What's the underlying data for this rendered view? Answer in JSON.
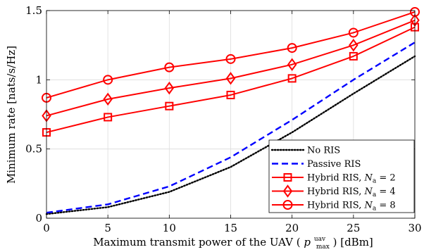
{
  "chart_data": {
    "type": "line",
    "xlabel": "Maximum transmit power of the UAV (p_max^uav) [dBm]",
    "xlabel_parts": {
      "prefix": "Maximum transmit power of the UAV (",
      "symbol": "p",
      "superscript": "uav",
      "subscript": "max",
      "suffix": ") [dBm]"
    },
    "ylabel": "Minimum rate [nats/s/Hz]",
    "xlim": [
      0,
      30
    ],
    "ylim": [
      0,
      1.5
    ],
    "x_ticks": [
      0,
      5,
      10,
      15,
      20,
      25,
      30
    ],
    "y_ticks": [
      0,
      0.5,
      1,
      1.5
    ],
    "x_tick_labels": [
      "0",
      "5",
      "10",
      "15",
      "20",
      "25",
      "30"
    ],
    "y_tick_labels": [
      "0",
      "0.5",
      "1",
      "1.5"
    ],
    "grid": true,
    "legend_position": "bottom-right",
    "x": [
      0,
      5,
      10,
      15,
      20,
      25,
      30
    ],
    "series": [
      {
        "name": "No RIS",
        "legend_text": "No RIS",
        "color": "#000000",
        "style": "dotted",
        "marker": "none",
        "values": [
          0.03,
          0.08,
          0.19,
          0.37,
          0.62,
          0.9,
          1.17
        ]
      },
      {
        "name": "Passive RIS",
        "legend_text": "Passive RIS",
        "color": "#0000ff",
        "style": "dashed",
        "marker": "none",
        "values": [
          0.04,
          0.1,
          0.23,
          0.44,
          0.71,
          1.0,
          1.27
        ]
      },
      {
        "name": "Hybrid RIS, N_a = 2",
        "legend_text": "Hybrid RIS, ",
        "math_symbol": "N",
        "math_sub": "a",
        "math_eq": " = 2",
        "color": "#ff0000",
        "style": "solid",
        "marker": "square",
        "values": [
          0.62,
          0.73,
          0.81,
          0.89,
          1.01,
          1.17,
          1.38
        ]
      },
      {
        "name": "Hybrid RIS, N_a = 4",
        "legend_text": "Hybrid RIS, ",
        "math_symbol": "N",
        "math_sub": "a",
        "math_eq": " = 4",
        "color": "#ff0000",
        "style": "solid",
        "marker": "diamond",
        "values": [
          0.74,
          0.86,
          0.94,
          1.01,
          1.11,
          1.25,
          1.43
        ]
      },
      {
        "name": "Hybrid RIS, N_a = 8",
        "legend_text": "Hybrid RIS, ",
        "math_symbol": "N",
        "math_sub": "a",
        "math_eq": " = 8",
        "color": "#ff0000",
        "style": "solid",
        "marker": "circle",
        "values": [
          0.87,
          1.0,
          1.09,
          1.15,
          1.23,
          1.34,
          1.49
        ]
      }
    ]
  }
}
